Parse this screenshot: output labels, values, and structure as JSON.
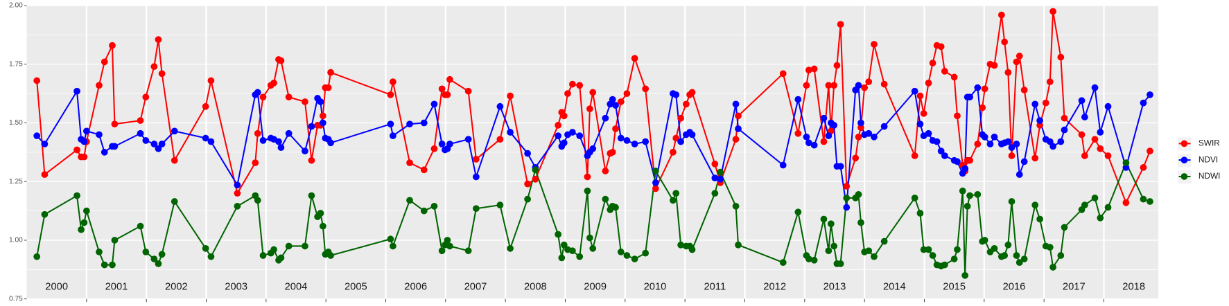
{
  "chart_data": {
    "type": "line",
    "x": [
      2000.17,
      2000.3,
      2000.84,
      2000.91,
      2000.96,
      2001.0,
      2001.21,
      2001.3,
      2001.43,
      2001.47,
      2001.9,
      2001.99,
      2002.13,
      2002.2,
      2002.26,
      2002.47,
      2002.99,
      2003.08,
      2003.52,
      2003.82,
      2003.86,
      2003.95,
      2004.08,
      2004.13,
      2004.21,
      2004.25,
      2004.38,
      2004.65,
      2004.76,
      2004.86,
      2004.91,
      2004.95,
      2004.99,
      2005.04,
      2005.08,
      2006.08,
      2006.12,
      2006.4,
      2006.64,
      2006.81,
      2006.94,
      2006.99,
      2007.03,
      2007.07,
      2007.38,
      2007.51,
      2007.91,
      2008.08,
      2008.37,
      2008.5,
      2008.88,
      2008.94,
      2008.98,
      2009.04,
      2009.12,
      2009.24,
      2009.37,
      2009.41,
      2009.46,
      2009.67,
      2009.75,
      2009.79,
      2009.84,
      2009.93,
      2010.03,
      2010.16,
      2010.34,
      2010.51,
      2010.8,
      2010.85,
      2010.93,
      2011.02,
      2011.08,
      2011.12,
      2011.5,
      2011.59,
      2011.85,
      2011.89,
      2012.64,
      2012.89,
      2013.03,
      2013.07,
      2013.16,
      2013.32,
      2013.4,
      2013.44,
      2013.49,
      2013.54,
      2013.6,
      2013.7,
      2013.85,
      2013.9,
      2013.94,
      2014.0,
      2014.07,
      2014.16,
      2014.33,
      2014.84,
      2014.93,
      2014.99,
      2015.07,
      2015.14,
      2015.21,
      2015.28,
      2015.34,
      2015.5,
      2015.55,
      2015.64,
      2015.68,
      2015.72,
      2015.76,
      2015.89,
      2015.97,
      2016.01,
      2016.1,
      2016.17,
      2016.29,
      2016.34,
      2016.4,
      2016.46,
      2016.54,
      2016.59,
      2016.67,
      2016.85,
      2016.93,
      2017.03,
      2017.1,
      2017.15,
      2017.28,
      2017.34,
      2017.63,
      2017.68,
      2017.85,
      2017.94,
      2018.07,
      2018.37,
      2018.66,
      2018.77
    ],
    "series": [
      {
        "name": "SWIR",
        "color": "#ff0000",
        "values": [
          1.68,
          1.28,
          1.385,
          1.355,
          1.355,
          1.42,
          1.66,
          1.76,
          1.83,
          1.495,
          1.51,
          1.61,
          1.74,
          1.855,
          1.71,
          1.34,
          1.57,
          1.68,
          1.2,
          1.33,
          1.455,
          1.61,
          1.66,
          1.67,
          1.77,
          1.765,
          1.61,
          1.59,
          1.34,
          1.49,
          1.49,
          1.53,
          1.65,
          1.65,
          1.715,
          1.62,
          1.675,
          1.33,
          1.3,
          1.39,
          1.645,
          1.62,
          1.62,
          1.685,
          1.635,
          1.345,
          1.43,
          1.615,
          1.24,
          1.26,
          1.49,
          1.545,
          1.53,
          1.625,
          1.665,
          1.66,
          1.27,
          1.56,
          1.63,
          1.295,
          1.37,
          1.375,
          1.475,
          1.59,
          1.625,
          1.775,
          1.645,
          1.22,
          1.375,
          1.435,
          1.52,
          1.58,
          1.62,
          1.63,
          1.325,
          1.245,
          1.43,
          1.53,
          1.71,
          1.455,
          1.66,
          1.725,
          1.73,
          1.42,
          1.66,
          1.465,
          1.66,
          1.745,
          1.92,
          1.23,
          1.35,
          1.44,
          1.48,
          1.65,
          1.675,
          1.835,
          1.665,
          1.36,
          1.615,
          1.54,
          1.67,
          1.755,
          1.83,
          1.825,
          1.72,
          1.695,
          1.53,
          1.32,
          1.295,
          1.34,
          1.34,
          1.41,
          1.565,
          1.645,
          1.75,
          1.745,
          1.96,
          1.845,
          1.715,
          1.36,
          1.76,
          1.785,
          1.64,
          1.35,
          1.49,
          1.585,
          1.675,
          1.975,
          1.78,
          1.52,
          1.45,
          1.36,
          1.43,
          1.39,
          1.36,
          1.16,
          1.31,
          1.38
        ]
      },
      {
        "name": "NDVI",
        "color": "#0000ff",
        "values": [
          1.445,
          1.41,
          1.635,
          1.43,
          1.42,
          1.465,
          1.45,
          1.375,
          1.4,
          1.4,
          1.455,
          1.425,
          1.41,
          1.39,
          1.41,
          1.465,
          1.435,
          1.42,
          1.235,
          1.62,
          1.63,
          1.425,
          1.435,
          1.43,
          1.42,
          1.395,
          1.455,
          1.38,
          1.485,
          1.605,
          1.59,
          1.5,
          1.435,
          1.43,
          1.415,
          1.495,
          1.445,
          1.495,
          1.5,
          1.58,
          1.41,
          1.385,
          1.39,
          1.41,
          1.43,
          1.27,
          1.57,
          1.46,
          1.37,
          1.31,
          1.445,
          1.4,
          1.415,
          1.45,
          1.46,
          1.445,
          1.36,
          1.375,
          1.39,
          1.52,
          1.58,
          1.6,
          1.575,
          1.435,
          1.425,
          1.41,
          1.42,
          1.245,
          1.625,
          1.62,
          1.42,
          1.45,
          1.46,
          1.45,
          1.265,
          1.26,
          1.58,
          1.475,
          1.32,
          1.6,
          1.44,
          1.415,
          1.405,
          1.52,
          1.445,
          1.5,
          1.49,
          1.315,
          1.315,
          1.14,
          1.64,
          1.66,
          1.5,
          1.45,
          1.455,
          1.44,
          1.485,
          1.635,
          1.495,
          1.445,
          1.455,
          1.425,
          1.42,
          1.38,
          1.36,
          1.34,
          1.335,
          1.285,
          1.305,
          1.61,
          1.61,
          1.65,
          1.45,
          1.44,
          1.41,
          1.44,
          1.41,
          1.415,
          1.42,
          1.395,
          1.41,
          1.28,
          1.335,
          1.58,
          1.51,
          1.43,
          1.42,
          1.4,
          1.42,
          1.47,
          1.595,
          1.525,
          1.65,
          1.46,
          1.57,
          1.31,
          1.585,
          1.62
        ]
      },
      {
        "name": "NDWI",
        "color": "#006400",
        "values": [
          0.93,
          1.11,
          1.19,
          1.045,
          1.075,
          1.125,
          0.95,
          0.895,
          0.895,
          1.0,
          1.06,
          0.95,
          0.92,
          0.9,
          0.94,
          1.165,
          0.965,
          0.93,
          1.145,
          1.19,
          1.17,
          0.935,
          0.945,
          0.96,
          0.915,
          0.925,
          0.975,
          0.975,
          1.19,
          1.1,
          1.115,
          1.06,
          0.94,
          0.95,
          0.935,
          1.005,
          0.975,
          1.17,
          1.125,
          1.145,
          0.955,
          0.98,
          1.0,
          0.975,
          0.955,
          1.135,
          1.15,
          0.965,
          1.175,
          1.3,
          1.025,
          0.925,
          0.98,
          0.96,
          0.955,
          0.93,
          1.21,
          1.01,
          0.965,
          1.175,
          1.13,
          1.145,
          1.14,
          0.95,
          0.935,
          0.92,
          0.945,
          1.295,
          1.17,
          1.2,
          0.98,
          0.975,
          0.975,
          0.96,
          1.2,
          1.29,
          1.145,
          0.98,
          0.905,
          1.12,
          0.935,
          0.92,
          0.915,
          1.09,
          0.955,
          1.07,
          0.975,
          0.9,
          0.9,
          1.18,
          1.18,
          1.195,
          1.075,
          0.95,
          0.955,
          0.93,
          0.995,
          1.18,
          1.115,
          0.96,
          0.96,
          0.935,
          0.895,
          0.89,
          0.895,
          0.92,
          0.96,
          1.21,
          0.85,
          1.145,
          1.19,
          1.195,
          0.995,
          1.0,
          0.95,
          0.965,
          0.93,
          0.935,
          0.98,
          1.165,
          0.935,
          0.905,
          0.92,
          1.15,
          1.09,
          0.975,
          0.97,
          0.885,
          0.935,
          1.055,
          1.13,
          1.15,
          1.18,
          1.095,
          1.14,
          1.33,
          1.175,
          1.165
        ]
      }
    ],
    "xlim": [
      2000,
      2018.91
    ],
    "xticks": [
      2001,
      2002,
      2003,
      2004,
      2005,
      2006,
      2007,
      2008,
      2009,
      2010,
      2011,
      2012,
      2013,
      2014,
      2015,
      2016,
      2017,
      2018
    ],
    "year_labels": [
      "2000",
      "2001",
      "2002",
      "2003",
      "2004",
      "2005",
      "2006",
      "2007",
      "2008",
      "2009",
      "2010",
      "2011",
      "2012",
      "2013",
      "2014",
      "2015",
      "2016",
      "2017",
      "2018"
    ],
    "ylim": [
      0.75,
      2.0
    ],
    "yticks": [
      {
        "value": 0.75,
        "label": "0.75"
      },
      {
        "value": 1.0,
        "label": "1.00"
      },
      {
        "value": 1.25,
        "label": "1.25"
      },
      {
        "value": 1.5,
        "label": "1.50"
      },
      {
        "value": 1.75,
        "label": "1.75"
      },
      {
        "value": 2.0,
        "label": "2.00"
      }
    ],
    "yminor": [
      0.875,
      1.125,
      1.375,
      1.625,
      1.875
    ],
    "grid": true,
    "legend": "right"
  }
}
